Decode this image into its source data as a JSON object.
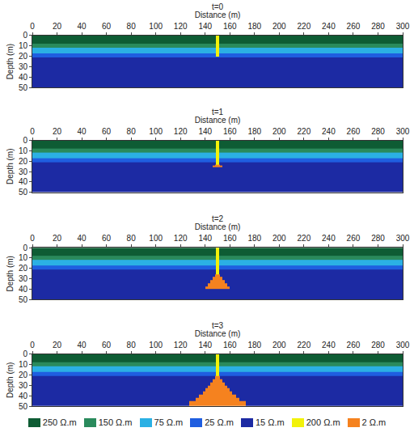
{
  "chart_data": [
    {
      "type": "heatmap",
      "title": "t=0",
      "x_label": "Distance (m)",
      "y_label": "Depth (m)",
      "xlim": [
        0,
        300
      ],
      "ylim": [
        0,
        50
      ],
      "xticks": [
        0,
        20,
        40,
        60,
        80,
        100,
        120,
        140,
        160,
        180,
        200,
        220,
        240,
        260,
        280,
        300
      ],
      "yticks": [
        0,
        10,
        20,
        30,
        40,
        50
      ],
      "x_edges": [
        0,
        149,
        151,
        300
      ],
      "y_edges": [
        0,
        8,
        12,
        17,
        20,
        21,
        50
      ],
      "cells": [
        [
          250,
          200,
          250
        ],
        [
          150,
          200,
          150
        ],
        [
          75,
          200,
          75
        ],
        [
          25,
          200,
          25
        ],
        [
          25,
          25,
          25
        ],
        [
          15,
          15,
          15
        ]
      ]
    },
    {
      "type": "heatmap",
      "title": "t=1",
      "x_label": "Distance (m)",
      "y_label": "Depth (m)",
      "xlim": [
        0,
        300
      ],
      "ylim": [
        0,
        50
      ],
      "xticks": [
        0,
        20,
        40,
        60,
        80,
        100,
        120,
        140,
        160,
        180,
        200,
        220,
        240,
        260,
        280,
        300
      ],
      "yticks": [
        0,
        10,
        20,
        30,
        40,
        50
      ],
      "x_edges": [
        0,
        146,
        148,
        149,
        151,
        152,
        154,
        300
      ],
      "y_edges": [
        0,
        8,
        12,
        17,
        21,
        23,
        24,
        26,
        50
      ],
      "cells": [
        [
          250,
          250,
          250,
          200,
          250,
          250,
          250
        ],
        [
          150,
          150,
          150,
          200,
          150,
          150,
          150
        ],
        [
          75,
          75,
          75,
          200,
          75,
          75,
          75
        ],
        [
          25,
          25,
          25,
          200,
          25,
          25,
          25
        ],
        [
          15,
          15,
          15,
          200,
          15,
          15,
          15
        ],
        [
          15,
          15,
          2,
          2,
          2,
          15,
          15
        ],
        [
          15,
          2,
          2,
          2,
          2,
          2,
          15
        ],
        [
          15,
          15,
          15,
          15,
          15,
          15,
          15
        ]
      ]
    },
    {
      "type": "heatmap",
      "title": "t=2",
      "x_label": "Distance (m)",
      "y_label": "Depth (m)",
      "xlim": [
        0,
        300
      ],
      "ylim": [
        0,
        50
      ],
      "xticks": [
        0,
        20,
        40,
        60,
        80,
        100,
        120,
        140,
        160,
        180,
        200,
        220,
        240,
        260,
        280,
        300
      ],
      "yticks": [
        0,
        10,
        20,
        30,
        40,
        50
      ],
      "x_edges": [
        0,
        140,
        142,
        144,
        146,
        148,
        149,
        151,
        152,
        154,
        156,
        158,
        160,
        300
      ],
      "y_edges": [
        0,
        8,
        12,
        17,
        21,
        26,
        28,
        31,
        34,
        37,
        40,
        50
      ],
      "cells": [
        [
          250,
          250,
          250,
          250,
          250,
          250,
          200,
          250,
          250,
          250,
          250,
          250,
          250
        ],
        [
          150,
          150,
          150,
          150,
          150,
          150,
          200,
          150,
          150,
          150,
          150,
          150,
          150
        ],
        [
          75,
          75,
          75,
          75,
          75,
          75,
          200,
          75,
          75,
          75,
          75,
          75,
          75
        ],
        [
          25,
          25,
          25,
          25,
          25,
          25,
          200,
          25,
          25,
          25,
          25,
          25,
          25
        ],
        [
          15,
          15,
          15,
          15,
          15,
          15,
          200,
          15,
          15,
          15,
          15,
          15,
          15
        ],
        [
          15,
          15,
          15,
          15,
          15,
          2,
          2,
          2,
          15,
          15,
          15,
          15,
          15
        ],
        [
          15,
          15,
          15,
          15,
          2,
          2,
          2,
          2,
          2,
          15,
          15,
          15,
          15
        ],
        [
          15,
          15,
          15,
          2,
          2,
          2,
          2,
          2,
          2,
          2,
          15,
          15,
          15
        ],
        [
          15,
          15,
          2,
          2,
          2,
          2,
          2,
          2,
          2,
          2,
          2,
          15,
          15
        ],
        [
          15,
          2,
          2,
          2,
          2,
          2,
          2,
          2,
          2,
          2,
          2,
          2,
          15
        ],
        [
          15,
          15,
          15,
          15,
          15,
          15,
          15,
          15,
          15,
          15,
          15,
          15,
          15
        ]
      ]
    },
    {
      "type": "heatmap",
      "title": "t=3",
      "x_label": "Distance (m)",
      "y_label": "Depth (m)",
      "xlim": [
        0,
        300
      ],
      "ylim": [
        0,
        50
      ],
      "xticks": [
        0,
        20,
        40,
        60,
        80,
        100,
        120,
        140,
        160,
        180,
        200,
        220,
        240,
        260,
        280,
        300
      ],
      "yticks": [
        0,
        10,
        20,
        30,
        40,
        50
      ],
      "x_edges": [
        0,
        127,
        132,
        135,
        138,
        140,
        142,
        144,
        146,
        148,
        149,
        151,
        152,
        154,
        156,
        158,
        160,
        162,
        165,
        168,
        173,
        300
      ],
      "y_edges": [
        0,
        8,
        12,
        17,
        21,
        24,
        27,
        30,
        33,
        36,
        39,
        42,
        45,
        50
      ],
      "cells": [
        [
          250,
          250,
          250,
          250,
          250,
          250,
          250,
          250,
          250,
          250,
          200,
          250,
          250,
          250,
          250,
          250,
          250,
          250,
          250,
          250,
          250
        ],
        [
          150,
          150,
          150,
          150,
          150,
          150,
          150,
          150,
          150,
          150,
          200,
          150,
          150,
          150,
          150,
          150,
          150,
          150,
          150,
          150,
          150
        ],
        [
          75,
          75,
          75,
          75,
          75,
          75,
          75,
          75,
          75,
          75,
          200,
          75,
          75,
          75,
          75,
          75,
          75,
          75,
          75,
          75,
          75
        ],
        [
          25,
          25,
          25,
          25,
          25,
          25,
          25,
          25,
          25,
          25,
          200,
          25,
          25,
          25,
          25,
          25,
          25,
          25,
          25,
          25,
          25
        ],
        [
          15,
          15,
          15,
          15,
          15,
          15,
          15,
          15,
          15,
          2,
          2,
          2,
          15,
          15,
          15,
          15,
          15,
          15,
          15,
          15,
          15
        ],
        [
          15,
          15,
          15,
          15,
          15,
          15,
          15,
          15,
          2,
          2,
          2,
          2,
          2,
          15,
          15,
          15,
          15,
          15,
          15,
          15,
          15
        ],
        [
          15,
          15,
          15,
          15,
          15,
          15,
          15,
          2,
          2,
          2,
          2,
          2,
          2,
          2,
          15,
          15,
          15,
          15,
          15,
          15,
          15
        ],
        [
          15,
          15,
          15,
          15,
          15,
          15,
          2,
          2,
          2,
          2,
          2,
          2,
          2,
          2,
          2,
          15,
          15,
          15,
          15,
          15,
          15
        ],
        [
          15,
          15,
          15,
          15,
          15,
          2,
          2,
          2,
          2,
          2,
          2,
          2,
          2,
          2,
          2,
          2,
          15,
          15,
          15,
          15,
          15
        ],
        [
          15,
          15,
          15,
          15,
          2,
          2,
          2,
          2,
          2,
          2,
          2,
          2,
          2,
          2,
          2,
          2,
          2,
          15,
          15,
          15,
          15
        ],
        [
          15,
          15,
          15,
          2,
          2,
          2,
          2,
          2,
          2,
          2,
          2,
          2,
          2,
          2,
          2,
          2,
          2,
          2,
          15,
          15,
          15
        ],
        [
          15,
          15,
          2,
          2,
          2,
          2,
          2,
          2,
          2,
          2,
          2,
          2,
          2,
          2,
          2,
          2,
          2,
          2,
          2,
          15,
          15
        ],
        [
          15,
          2,
          2,
          2,
          2,
          2,
          2,
          2,
          2,
          2,
          2,
          2,
          2,
          2,
          2,
          2,
          2,
          2,
          2,
          2,
          15
        ]
      ]
    }
  ],
  "color_key": [
    {
      "value": 250,
      "label": "250 Ω.m",
      "color": "#0e5c34"
    },
    {
      "value": 150,
      "label": "150 Ω.m",
      "color": "#2a8a5c"
    },
    {
      "value": 75,
      "label": "75 Ω.m",
      "color": "#2bb0e4"
    },
    {
      "value": 25,
      "label": "25 Ω.m",
      "color": "#1f5ee0"
    },
    {
      "value": 15,
      "label": "15 Ω.m",
      "color": "#1c2aa3"
    },
    {
      "value": 200,
      "label": "200 Ω.m",
      "color": "#f2f20a"
    },
    {
      "value": 2,
      "label": "2 Ω.m",
      "color": "#f5821f"
    }
  ]
}
